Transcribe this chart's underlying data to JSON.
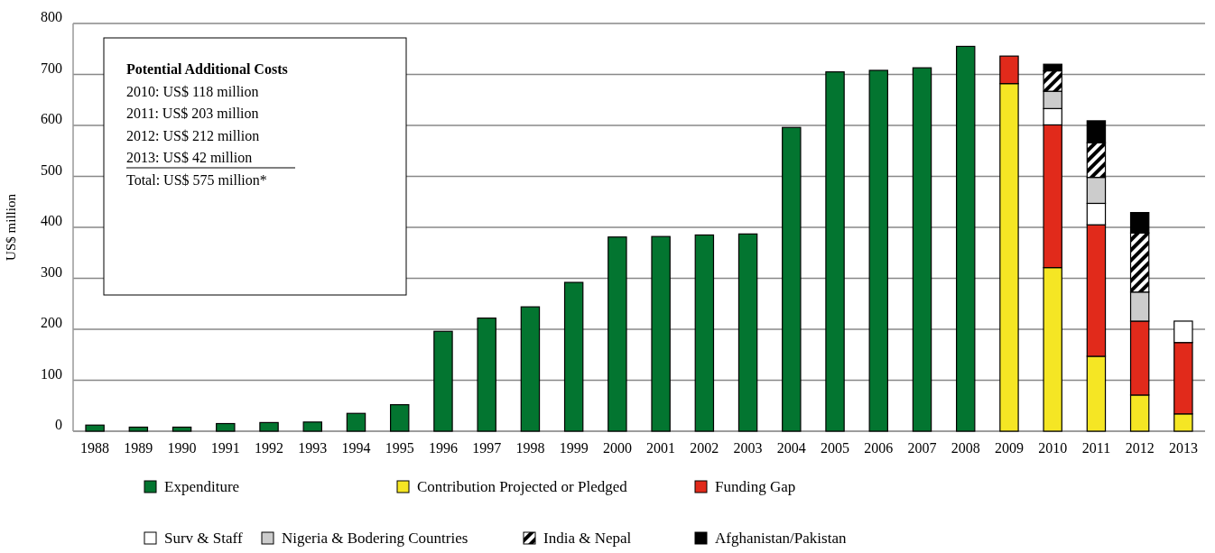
{
  "chart_data": {
    "type": "bar",
    "stacked": true,
    "ylabel": "US$ million",
    "categories": [
      "1988",
      "1989",
      "1990",
      "1991",
      "1992",
      "1993",
      "1994",
      "1995",
      "1996",
      "1997",
      "1998",
      "1999",
      "2000",
      "2001",
      "2002",
      "2003",
      "2004",
      "2005",
      "2006",
      "2007",
      "2008",
      "2009",
      "2010",
      "2011",
      "2012",
      "2013"
    ],
    "series": [
      {
        "name": "Expenditure",
        "color": "#037530",
        "values": [
          12,
          8,
          8,
          15,
          17,
          18,
          35,
          52,
          196,
          222,
          244,
          292,
          381,
          382,
          385,
          387,
          596,
          705,
          708,
          713,
          755,
          null,
          null,
          null,
          null,
          null
        ]
      },
      {
        "name": "Contribution Projected or Pledged",
        "color": "#f5e624",
        "values": [
          null,
          null,
          null,
          null,
          null,
          null,
          null,
          null,
          null,
          null,
          null,
          null,
          null,
          null,
          null,
          null,
          null,
          null,
          null,
          null,
          null,
          682,
          321,
          147,
          71,
          34
        ]
      },
      {
        "name": "Funding Gap",
        "color": "#e12a1b",
        "values": [
          null,
          null,
          null,
          null,
          null,
          null,
          null,
          null,
          null,
          null,
          null,
          null,
          null,
          null,
          null,
          null,
          null,
          null,
          null,
          null,
          null,
          54,
          280,
          258,
          145,
          140
        ]
      },
      {
        "name": "Surv & Staff",
        "color": "#ffffff",
        "values": [
          null,
          null,
          null,
          null,
          null,
          null,
          null,
          null,
          null,
          null,
          null,
          null,
          null,
          null,
          null,
          null,
          null,
          null,
          null,
          null,
          null,
          null,
          32,
          42,
          null,
          42
        ]
      },
      {
        "name": "Nigeria & Bodering Countries",
        "color": "#cccccc",
        "values": [
          null,
          null,
          null,
          null,
          null,
          null,
          null,
          null,
          null,
          null,
          null,
          null,
          null,
          null,
          null,
          null,
          null,
          null,
          null,
          null,
          null,
          null,
          34,
          51,
          57,
          null
        ]
      },
      {
        "name": "India & Nepal",
        "color": "#000000",
        "values": [
          null,
          null,
          null,
          null,
          null,
          null,
          null,
          null,
          null,
          null,
          null,
          null,
          null,
          null,
          null,
          null,
          null,
          null,
          null,
          null,
          null,
          null,
          40,
          68,
          116,
          null
        ]
      },
      {
        "name": "Afghanistan/Pakistan",
        "color": "#010101",
        "values": [
          null,
          null,
          null,
          null,
          null,
          null,
          null,
          null,
          null,
          null,
          null,
          null,
          null,
          null,
          null,
          null,
          null,
          null,
          null,
          null,
          null,
          null,
          13,
          43,
          40,
          null
        ]
      }
    ],
    "ylim": [
      0,
      800
    ],
    "yticks": [
      0,
      100,
      200,
      300,
      400,
      500,
      600,
      700,
      800
    ],
    "grid": "y",
    "legend": "bottom",
    "annotations": [
      "Potential Additional Costs",
      "2010: US$ 118 million",
      "2011: US$ 203 million",
      "2012: US$ 212 million",
      "2013: US$ 42 million",
      "Total: US$ 575 million*"
    ]
  }
}
